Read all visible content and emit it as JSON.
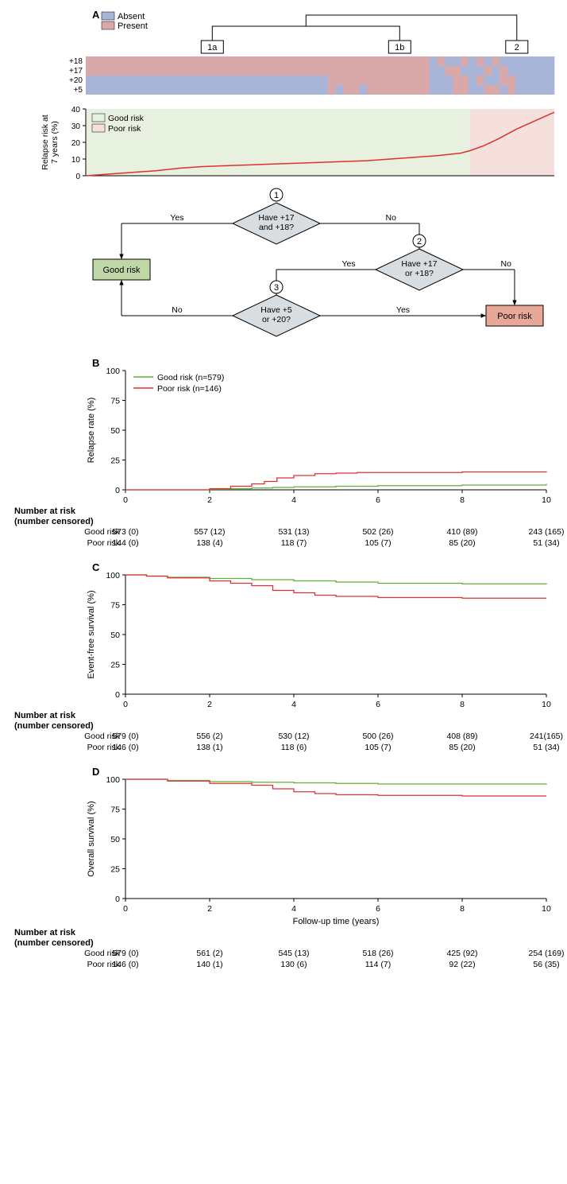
{
  "panels": {
    "A": "A",
    "B": "B",
    "C": "C",
    "D": "D"
  },
  "panelA": {
    "legend": {
      "absent": {
        "label": "Absent",
        "color": "#a8b5d8"
      },
      "present": {
        "label": "Present",
        "color": "#d9a8a8"
      }
    },
    "dendrogram_labels": [
      "1a",
      "1b",
      "2"
    ],
    "heatmap": {
      "row_labels": [
        "+18",
        "+17",
        "+20",
        "+5"
      ],
      "absent_color": "#a8b5d8",
      "present_color": "#d9a8a8",
      "ncols": 60,
      "rows": [
        [
          1,
          1,
          1,
          1,
          1,
          1,
          1,
          1,
          1,
          1,
          1,
          1,
          1,
          1,
          1,
          1,
          1,
          1,
          1,
          1,
          1,
          1,
          1,
          1,
          1,
          1,
          1,
          1,
          1,
          1,
          1,
          1,
          1,
          1,
          1,
          1,
          1,
          1,
          1,
          1,
          1,
          1,
          1,
          1,
          0,
          1,
          0,
          0,
          1,
          0,
          1,
          0,
          1,
          0,
          0,
          0,
          0,
          0,
          0,
          0
        ],
        [
          1,
          1,
          1,
          1,
          1,
          1,
          1,
          1,
          1,
          1,
          1,
          1,
          1,
          1,
          1,
          1,
          1,
          1,
          1,
          1,
          1,
          1,
          1,
          1,
          1,
          1,
          1,
          1,
          1,
          1,
          1,
          1,
          1,
          1,
          1,
          1,
          1,
          1,
          1,
          1,
          1,
          1,
          1,
          1,
          0,
          0,
          1,
          1,
          0,
          0,
          0,
          1,
          0,
          1,
          0,
          0,
          0,
          0,
          0,
          0
        ],
        [
          0,
          0,
          0,
          0,
          0,
          0,
          0,
          0,
          0,
          0,
          0,
          0,
          0,
          0,
          0,
          0,
          0,
          0,
          0,
          0,
          0,
          0,
          0,
          0,
          0,
          0,
          0,
          0,
          0,
          0,
          0,
          1,
          1,
          1,
          1,
          1,
          1,
          1,
          1,
          1,
          1,
          1,
          1,
          1,
          0,
          0,
          0,
          1,
          1,
          0,
          1,
          0,
          0,
          1,
          1,
          0,
          0,
          0,
          0,
          0
        ],
        [
          0,
          0,
          0,
          0,
          0,
          0,
          0,
          0,
          0,
          0,
          0,
          0,
          0,
          0,
          0,
          0,
          0,
          0,
          0,
          0,
          0,
          0,
          0,
          0,
          0,
          0,
          0,
          0,
          0,
          0,
          0,
          1,
          0,
          1,
          1,
          0,
          1,
          1,
          1,
          1,
          1,
          1,
          1,
          1,
          0,
          0,
          0,
          1,
          1,
          0,
          0,
          1,
          1,
          0,
          1,
          0,
          0,
          0,
          0,
          0
        ]
      ]
    },
    "risk_curve": {
      "ylabel": "Relapse risk at\n7 years (%)",
      "ylim": [
        0,
        40
      ],
      "yticks": [
        0,
        10,
        20,
        30,
        40
      ],
      "good_bg": "#e8f0e0",
      "poor_bg": "#f5e0dc",
      "split": 0.82,
      "line_color": "#e03030",
      "points": [
        [
          0,
          0
        ],
        [
          0.05,
          1
        ],
        [
          0.1,
          2
        ],
        [
          0.15,
          3
        ],
        [
          0.2,
          4.5
        ],
        [
          0.25,
          5.5
        ],
        [
          0.3,
          6
        ],
        [
          0.35,
          6.5
        ],
        [
          0.4,
          7
        ],
        [
          0.45,
          7.5
        ],
        [
          0.5,
          8
        ],
        [
          0.55,
          8.5
        ],
        [
          0.6,
          9
        ],
        [
          0.65,
          10
        ],
        [
          0.7,
          11
        ],
        [
          0.75,
          12
        ],
        [
          0.8,
          13.5
        ],
        [
          0.82,
          15
        ],
        [
          0.85,
          18
        ],
        [
          0.88,
          22
        ],
        [
          0.92,
          28
        ],
        [
          0.96,
          33
        ],
        [
          1,
          38
        ]
      ],
      "legend": {
        "good": "Good risk",
        "poor": "Poor risk"
      }
    },
    "flowchart": {
      "yes": "Yes",
      "no": "No",
      "nodes": {
        "1": "Have +17\nand +18?",
        "2": "Have +17\nor +18?",
        "3": "Have +5\nor +20?"
      },
      "good": "Good risk",
      "poor": "Poor risk",
      "diamond_fill": "#d8dde2",
      "good_fill": "#c0d8a8",
      "poor_fill": "#e8a898"
    }
  },
  "survival": {
    "good_color": "#60b030",
    "poor_color": "#e03030",
    "x_ticks": [
      0,
      2,
      4,
      6,
      8,
      10
    ],
    "risk_header": "Number at risk\n(number censored)",
    "good_label": "Good risk",
    "poor_label": "Poor risk",
    "xlabel": "Follow-up time (years)"
  },
  "panelB": {
    "ylabel": "Relapse rate (%)",
    "ylim": [
      0,
      100
    ],
    "yticks": [
      0,
      25,
      50,
      75,
      100
    ],
    "legend_good": "Good risk (n=579)",
    "legend_poor": "Poor risk (n=146)",
    "good_line": [
      [
        0,
        0
      ],
      [
        1.5,
        0
      ],
      [
        2,
        0.5
      ],
      [
        2.5,
        1
      ],
      [
        3,
        1.5
      ],
      [
        3.5,
        2
      ],
      [
        4,
        2.5
      ],
      [
        5,
        3
      ],
      [
        6,
        3.5
      ],
      [
        8,
        4
      ],
      [
        10,
        5
      ]
    ],
    "poor_line": [
      [
        0,
        0
      ],
      [
        1.5,
        0
      ],
      [
        2,
        1
      ],
      [
        2.5,
        3
      ],
      [
        3,
        5
      ],
      [
        3.3,
        7
      ],
      [
        3.6,
        10
      ],
      [
        4,
        12
      ],
      [
        4.5,
        13.5
      ],
      [
        5,
        14
      ],
      [
        5.5,
        14.5
      ],
      [
        6,
        14.5
      ],
      [
        8,
        15
      ],
      [
        10,
        15.5
      ]
    ],
    "risk_good": [
      "573 (0)",
      "557 (12)",
      "531 (13)",
      "502 (26)",
      "410 (89)",
      "243 (165)"
    ],
    "risk_poor": [
      "144 (0)",
      "138 (4)",
      "118 (7)",
      "105 (7)",
      "85 (20)",
      "51 (34)"
    ]
  },
  "panelC": {
    "ylabel": "Event-free survival (%)",
    "ylim": [
      0,
      100
    ],
    "yticks": [
      0,
      25,
      50,
      75,
      100
    ],
    "good_line": [
      [
        0,
        100
      ],
      [
        0.5,
        99
      ],
      [
        1,
        98
      ],
      [
        2,
        97
      ],
      [
        3,
        96
      ],
      [
        4,
        95
      ],
      [
        5,
        94
      ],
      [
        6,
        93
      ],
      [
        7,
        93
      ],
      [
        8,
        92.5
      ],
      [
        10,
        92
      ]
    ],
    "poor_line": [
      [
        0,
        100
      ],
      [
        0.5,
        99
      ],
      [
        1,
        97.5
      ],
      [
        2,
        95
      ],
      [
        2.5,
        93
      ],
      [
        3,
        91
      ],
      [
        3.5,
        87
      ],
      [
        4,
        85
      ],
      [
        4.5,
        83
      ],
      [
        5,
        82
      ],
      [
        6,
        81
      ],
      [
        7,
        81
      ],
      [
        8,
        80.5
      ],
      [
        10,
        80.5
      ]
    ],
    "risk_good": [
      "579 (0)",
      "556 (2)",
      "530 (12)",
      "500 (26)",
      "408 (89)",
      "241(165)"
    ],
    "risk_poor": [
      "146 (0)",
      "138 (1)",
      "118 (6)",
      "105 (7)",
      "85 (20)",
      "51 (34)"
    ]
  },
  "panelD": {
    "ylabel": "Overall survival (%)",
    "ylim": [
      0,
      100
    ],
    "yticks": [
      0,
      25,
      50,
      75,
      100
    ],
    "good_line": [
      [
        0,
        100
      ],
      [
        1,
        99
      ],
      [
        2,
        98
      ],
      [
        3,
        97.5
      ],
      [
        4,
        97
      ],
      [
        5,
        96.5
      ],
      [
        6,
        96
      ],
      [
        8,
        96
      ],
      [
        10,
        95.5
      ]
    ],
    "poor_line": [
      [
        0,
        100
      ],
      [
        1,
        98.5
      ],
      [
        2,
        96.5
      ],
      [
        3,
        95
      ],
      [
        3.5,
        92
      ],
      [
        4,
        89.5
      ],
      [
        4.5,
        88
      ],
      [
        5,
        87
      ],
      [
        6,
        86.5
      ],
      [
        8,
        86
      ],
      [
        10,
        86
      ]
    ],
    "risk_good": [
      "579 (0)",
      "561 (2)",
      "545 (13)",
      "518 (26)",
      "425 (92)",
      "254 (169)"
    ],
    "risk_poor": [
      "146 (0)",
      "140 (1)",
      "130 (6)",
      "114 (7)",
      "92 (22)",
      "56 (35)"
    ]
  }
}
